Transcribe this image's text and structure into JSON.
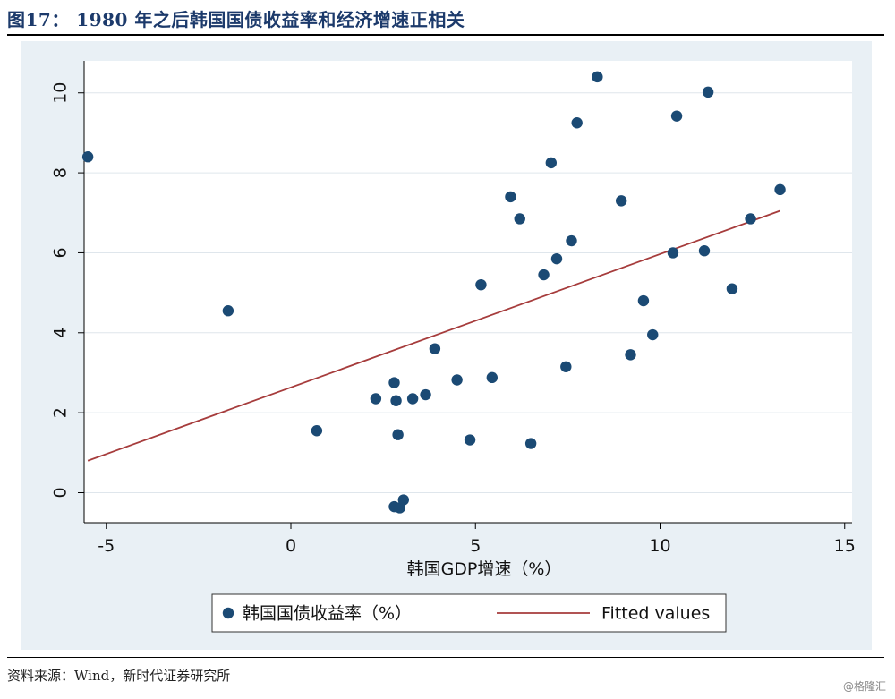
{
  "figure": {
    "title": "图17： 1980 年之后韩国国债收益率和经济增速正相关",
    "source": "资料来源：Wind，新时代证券研究所",
    "watermark": "@格隆汇"
  },
  "chart_data": {
    "type": "scatter",
    "title": "",
    "xlabel": "韩国GDP增速（%）",
    "ylabel": "",
    "xlim": [
      -5.6,
      15.2
    ],
    "ylim": [
      -0.75,
      10.8
    ],
    "xticks": [
      -5,
      0,
      5,
      10,
      15
    ],
    "yticks": [
      0,
      2,
      4,
      6,
      8,
      10
    ],
    "grid": true,
    "legend_position": "bottom",
    "colors": {
      "points": "#1b4a74",
      "fit": "#a63c3c",
      "background": "#e9f0f5",
      "plot_area": "#ffffff",
      "grid": "#dfe6ec"
    },
    "series": [
      {
        "name": "韩国国债收益率（%）",
        "kind": "scatter",
        "points": [
          [
            -5.5,
            8.4
          ],
          [
            -1.7,
            4.55
          ],
          [
            0.7,
            1.55
          ],
          [
            2.3,
            2.35
          ],
          [
            2.8,
            2.75
          ],
          [
            2.85,
            2.3
          ],
          [
            2.9,
            1.45
          ],
          [
            2.8,
            -0.35
          ],
          [
            2.95,
            -0.38
          ],
          [
            3.05,
            -0.18
          ],
          [
            3.3,
            2.35
          ],
          [
            3.65,
            2.45
          ],
          [
            3.9,
            3.6
          ],
          [
            4.5,
            2.82
          ],
          [
            4.85,
            1.32
          ],
          [
            5.15,
            5.2
          ],
          [
            5.45,
            2.88
          ],
          [
            5.95,
            7.4
          ],
          [
            6.2,
            6.85
          ],
          [
            6.5,
            1.23
          ],
          [
            6.85,
            5.45
          ],
          [
            7.05,
            8.25
          ],
          [
            7.2,
            5.85
          ],
          [
            7.45,
            3.15
          ],
          [
            7.6,
            6.3
          ],
          [
            7.75,
            9.25
          ],
          [
            8.3,
            10.4
          ],
          [
            8.95,
            7.3
          ],
          [
            9.2,
            3.45
          ],
          [
            9.55,
            4.8
          ],
          [
            9.8,
            3.95
          ],
          [
            10.35,
            6.0
          ],
          [
            10.45,
            9.42
          ],
          [
            11.2,
            6.05
          ],
          [
            11.3,
            10.02
          ],
          [
            11.95,
            5.1
          ],
          [
            12.45,
            6.85
          ],
          [
            13.25,
            7.58
          ]
        ]
      },
      {
        "name": "Fitted values",
        "kind": "line",
        "points": [
          [
            -5.5,
            0.8
          ],
          [
            13.25,
            7.05
          ]
        ]
      }
    ]
  }
}
